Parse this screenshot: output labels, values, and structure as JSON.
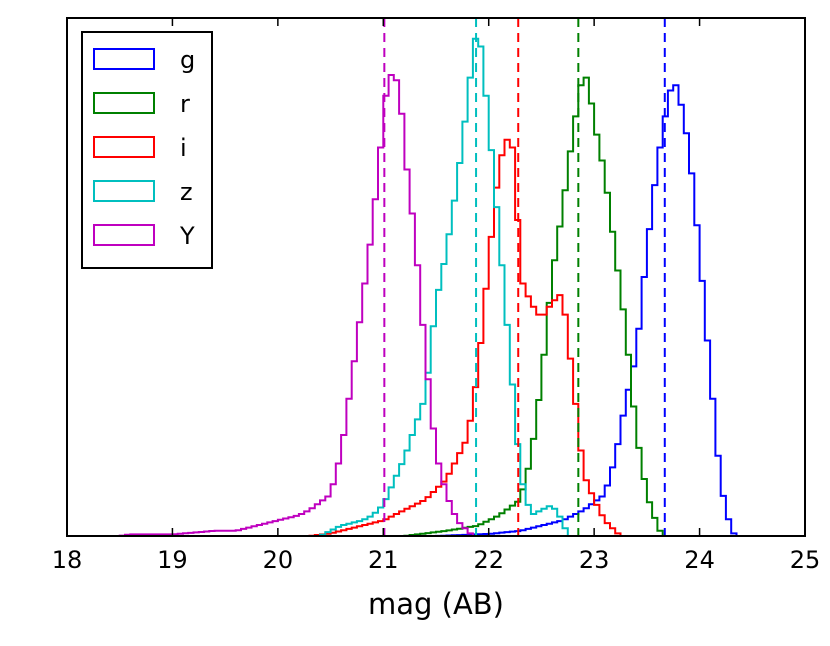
{
  "chart_data": {
    "type": "histogram",
    "title": "",
    "xlabel": "mag (AB)",
    "ylabel": "",
    "xlim": [
      18,
      25
    ],
    "ylim": [
      0,
      1.0
    ],
    "yticks_shown": false,
    "xticks": [
      18,
      19,
      20,
      21,
      22,
      23,
      24,
      25
    ],
    "xtick_labels": [
      "18",
      "19",
      "20",
      "21",
      "22",
      "23",
      "24",
      "25"
    ],
    "bin_width": 0.05,
    "legend": {
      "location": "upper-left",
      "entries": [
        "g",
        "r",
        "i",
        "z",
        "Y"
      ]
    },
    "series": [
      {
        "name": "g",
        "color": "#0000ff",
        "median": 23.67,
        "anchors": [
          [
            21.5,
            0
          ],
          [
            22.0,
            0.004
          ],
          [
            22.3,
            0.01
          ],
          [
            22.5,
            0.02
          ],
          [
            22.7,
            0.03
          ],
          [
            22.9,
            0.05
          ],
          [
            23.1,
            0.08
          ],
          [
            23.2,
            0.15
          ],
          [
            23.3,
            0.26
          ],
          [
            23.4,
            0.35
          ],
          [
            23.5,
            0.55
          ],
          [
            23.6,
            0.72
          ],
          [
            23.7,
            0.84
          ],
          [
            23.75,
            0.88
          ],
          [
            23.8,
            0.86
          ],
          [
            23.9,
            0.75
          ],
          [
            24.0,
            0.55
          ],
          [
            24.1,
            0.32
          ],
          [
            24.2,
            0.1
          ],
          [
            24.3,
            0.01
          ],
          [
            24.35,
            0
          ]
        ]
      },
      {
        "name": "r",
        "color": "#008000",
        "median": 22.85,
        "anchors": [
          [
            21.2,
            0
          ],
          [
            21.6,
            0.01
          ],
          [
            21.9,
            0.02
          ],
          [
            22.1,
            0.04
          ],
          [
            22.3,
            0.07
          ],
          [
            22.4,
            0.15
          ],
          [
            22.5,
            0.3
          ],
          [
            22.6,
            0.5
          ],
          [
            22.7,
            0.63
          ],
          [
            22.8,
            0.78
          ],
          [
            22.9,
            0.9
          ],
          [
            22.95,
            0.87
          ],
          [
            23.0,
            0.8
          ],
          [
            23.1,
            0.7
          ],
          [
            23.2,
            0.55
          ],
          [
            23.3,
            0.4
          ],
          [
            23.4,
            0.2
          ],
          [
            23.5,
            0.08
          ],
          [
            23.6,
            0.02
          ],
          [
            23.65,
            0
          ]
        ]
      },
      {
        "name": "i",
        "color": "#ff0000",
        "median": 22.28,
        "anchors": [
          [
            20.3,
            0
          ],
          [
            20.5,
            0.005
          ],
          [
            20.8,
            0.02
          ],
          [
            21.0,
            0.03
          ],
          [
            21.2,
            0.05
          ],
          [
            21.4,
            0.07
          ],
          [
            21.6,
            0.11
          ],
          [
            21.8,
            0.19
          ],
          [
            21.9,
            0.32
          ],
          [
            22.0,
            0.53
          ],
          [
            22.1,
            0.72
          ],
          [
            22.2,
            0.78
          ],
          [
            22.25,
            0.72
          ],
          [
            22.3,
            0.5
          ],
          [
            22.4,
            0.45
          ],
          [
            22.5,
            0.42
          ],
          [
            22.6,
            0.45
          ],
          [
            22.7,
            0.47
          ],
          [
            22.8,
            0.3
          ],
          [
            22.9,
            0.12
          ],
          [
            23.0,
            0.07
          ],
          [
            23.1,
            0.03
          ],
          [
            23.2,
            0.01
          ],
          [
            23.25,
            0
          ]
        ]
      },
      {
        "name": "z",
        "color": "#00bfbf",
        "median": 21.88,
        "anchors": [
          [
            20.4,
            0
          ],
          [
            20.6,
            0.02
          ],
          [
            20.8,
            0.03
          ],
          [
            20.9,
            0.04
          ],
          [
            21.0,
            0.06
          ],
          [
            21.2,
            0.15
          ],
          [
            21.4,
            0.27
          ],
          [
            21.5,
            0.45
          ],
          [
            21.6,
            0.55
          ],
          [
            21.7,
            0.68
          ],
          [
            21.8,
            0.84
          ],
          [
            21.85,
            0.93
          ],
          [
            21.9,
            0.99
          ],
          [
            21.95,
            0.9
          ],
          [
            22.0,
            0.8
          ],
          [
            22.1,
            0.58
          ],
          [
            22.2,
            0.35
          ],
          [
            22.3,
            0.12
          ],
          [
            22.4,
            0.04
          ],
          [
            22.5,
            0.05
          ],
          [
            22.6,
            0.06
          ],
          [
            22.7,
            0.03
          ],
          [
            22.75,
            0
          ]
        ]
      },
      {
        "name": "Y",
        "color": "#bf00bf",
        "median": 21.01,
        "anchors": [
          [
            18.5,
            0
          ],
          [
            18.6,
            0.003
          ],
          [
            19.0,
            0.003
          ],
          [
            19.4,
            0.01
          ],
          [
            19.6,
            0.01
          ],
          [
            19.8,
            0.02
          ],
          [
            20.0,
            0.03
          ],
          [
            20.2,
            0.04
          ],
          [
            20.3,
            0.05
          ],
          [
            20.5,
            0.08
          ],
          [
            20.6,
            0.16
          ],
          [
            20.7,
            0.3
          ],
          [
            20.8,
            0.45
          ],
          [
            20.9,
            0.6
          ],
          [
            21.0,
            0.8
          ],
          [
            21.05,
            0.9
          ],
          [
            21.1,
            0.88
          ],
          [
            21.15,
            0.88
          ],
          [
            21.2,
            0.75
          ],
          [
            21.3,
            0.58
          ],
          [
            21.4,
            0.35
          ],
          [
            21.5,
            0.16
          ],
          [
            21.6,
            0.08
          ],
          [
            21.7,
            0.03
          ],
          [
            21.8,
            0.01
          ],
          [
            21.85,
            0
          ]
        ]
      }
    ]
  }
}
